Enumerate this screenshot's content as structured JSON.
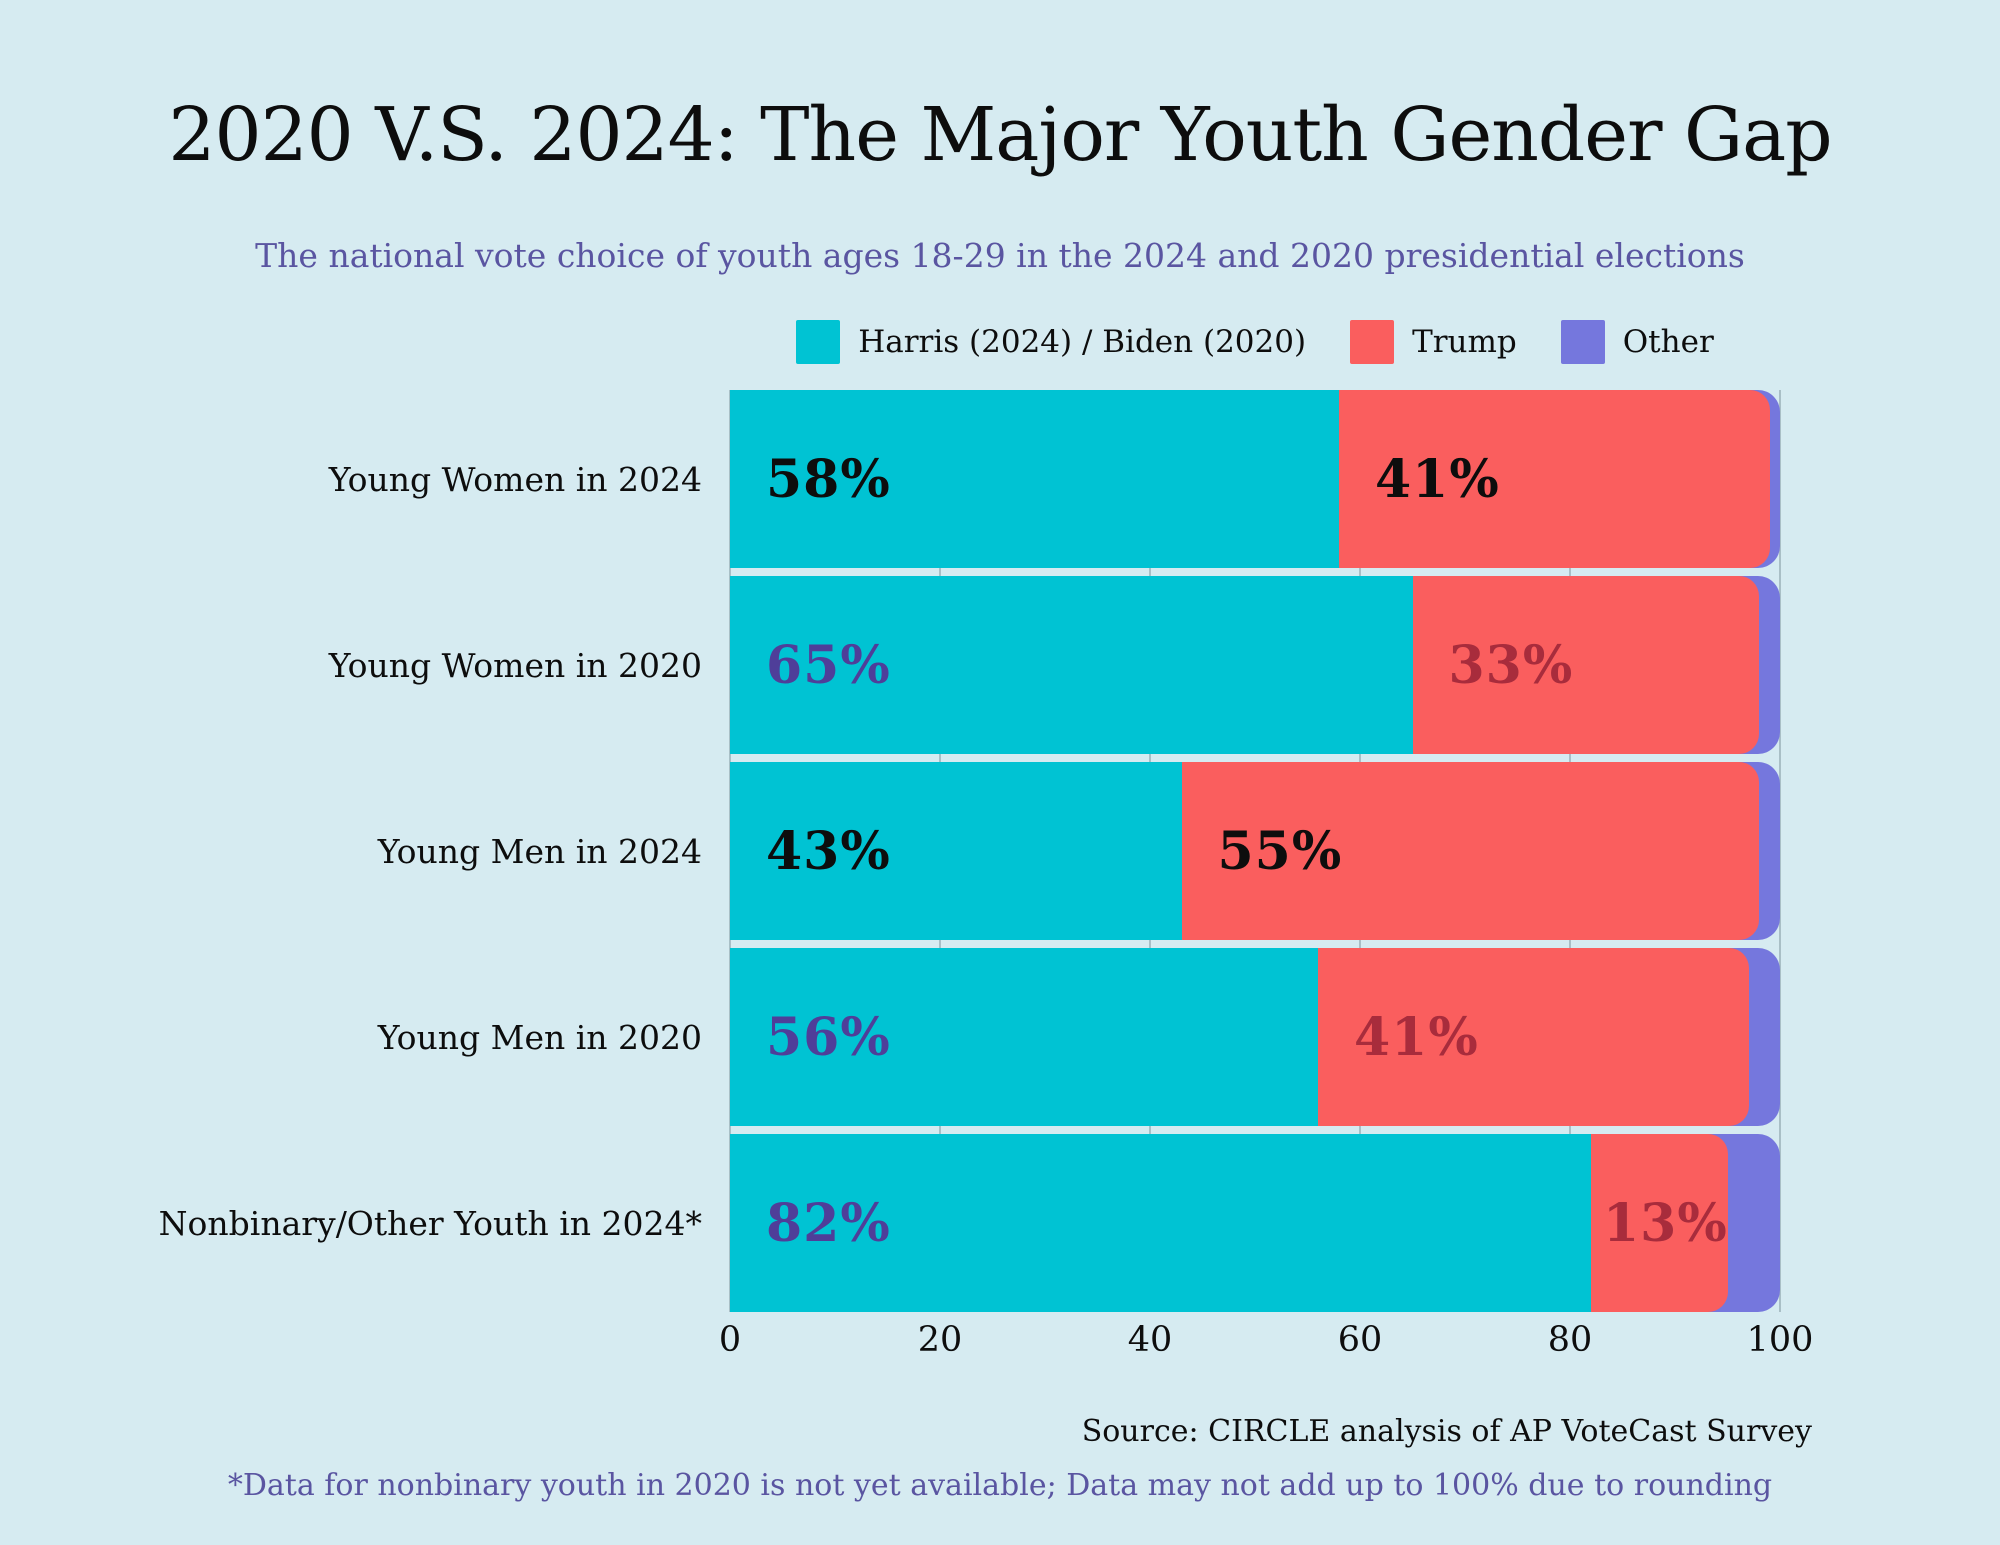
{
  "header": {
    "title": "2020 V.S. 2024: The Major Youth Gender Gap",
    "subtitle": "The national vote choice of youth ages 18-29 in the 2024 and 2020 presidential elections"
  },
  "palette": {
    "background": "#d6ebf1",
    "harris_biden": "#00c3d3",
    "trump": "#fa5e5e",
    "other": "#7577dd",
    "gridline": "#a9bfc6",
    "value_text_black": "#0d0d0d",
    "value_text_purple": "#4f3e99",
    "value_text_dark_red": "#a82c3c",
    "accent_purple_text": "#5a55a1"
  },
  "legend": {
    "items": [
      {
        "label": "Harris (2024) / Biden (2020)",
        "color": "#00c3d3"
      },
      {
        "label": "Trump",
        "color": "#fa5e5e"
      },
      {
        "label": "Other",
        "color": "#7577dd"
      }
    ]
  },
  "chart_data": {
    "type": "bar",
    "orientation": "horizontal",
    "stacked": true,
    "title": "2020 V.S. 2024: The Major Youth Gender Gap",
    "subtitle": "The national vote choice of youth ages 18-29 in the 2024 and 2020 presidential elections",
    "xlabel": "",
    "ylabel": "",
    "xlim": [
      0,
      100
    ],
    "x_ticks": [
      0,
      20,
      40,
      60,
      80,
      100
    ],
    "grid": true,
    "legend_position": "top",
    "categories": [
      "Young Women in 2024",
      "Young Women in 2020",
      "Young Men in 2024",
      "Young Men in 2020",
      "Nonbinary/Other Youth in 2024*"
    ],
    "series": [
      {
        "name": "Harris (2024) / Biden (2020)",
        "color": "#00c3d3",
        "values": [
          58,
          65,
          43,
          56,
          82
        ]
      },
      {
        "name": "Trump",
        "color": "#fa5e5e",
        "values": [
          41,
          33,
          55,
          41,
          13
        ]
      },
      {
        "name": "Other",
        "color": "#7577dd",
        "values": [
          1,
          2,
          2,
          3,
          5
        ]
      }
    ],
    "rows": [
      {
        "category": "Young Women in 2024",
        "harris": 58,
        "trump": 41,
        "other": 1,
        "harris_label": "58%",
        "trump_label": "41%",
        "value_style": "plain"
      },
      {
        "category": "Young Women in 2020",
        "harris": 65,
        "trump": 33,
        "other": 2,
        "harris_label": "65%",
        "trump_label": "33%",
        "value_style": "tinted"
      },
      {
        "category": "Young Men in 2024",
        "harris": 43,
        "trump": 55,
        "other": 2,
        "harris_label": "43%",
        "trump_label": "55%",
        "value_style": "plain"
      },
      {
        "category": "Young Men in 2020",
        "harris": 56,
        "trump": 41,
        "other": 3,
        "harris_label": "56%",
        "trump_label": "41%",
        "value_style": "tinted"
      },
      {
        "category": "Nonbinary/Other Youth in 2024*",
        "harris": 82,
        "trump": 13,
        "other": 5,
        "harris_label": "82%",
        "trump_label": "13%",
        "value_style": "tinted"
      }
    ]
  },
  "footer": {
    "source": "Source: CIRCLE analysis of AP VoteCast Survey",
    "footnote": "*Data for nonbinary youth in 2020 is not yet available; Data may not add up to 100% due to rounding"
  }
}
